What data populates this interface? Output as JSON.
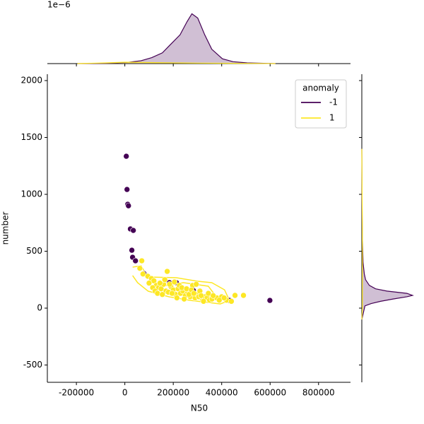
{
  "chart_data": {
    "type": "scatter",
    "x_label": "N50",
    "y_label": "number",
    "xlim": [
      -320000,
      932000
    ],
    "xticks": [
      -200000,
      0,
      200000,
      400000,
      600000,
      800000
    ],
    "ylim": [
      -652,
      2056
    ],
    "yticks": [
      -500,
      0,
      500,
      1000,
      1500,
      2000
    ],
    "legend": {
      "title": "anomaly",
      "position": "upper right"
    },
    "series": [
      {
        "name": "-1",
        "color": "#440154",
        "x": [
          6000,
          9000,
          12000,
          15000,
          23000,
          35000,
          29000,
          32000,
          44000,
          79000,
          184000,
          213000,
          283000,
          432000,
          599000
        ],
        "y": [
          1335,
          1043,
          913,
          900,
          696,
          683,
          509,
          447,
          416,
          304,
          224,
          224,
          155,
          68,
          68
        ]
      },
      {
        "name": "1",
        "color": "#fde725",
        "x": [
          70000,
          175000,
          455000,
          490000,
          62000,
          75000,
          95000,
          110000,
          120000,
          130000,
          140000,
          150000,
          160000,
          170000,
          180000,
          190000,
          200000,
          210000,
          220000,
          230000,
          240000,
          250000,
          260000,
          270000,
          280000,
          290000,
          300000,
          310000,
          320000,
          330000,
          340000,
          350000,
          360000,
          380000,
          400000,
          420000,
          440000,
          100000,
          115000,
          125000,
          135000,
          145000,
          155000,
          165000,
          185000,
          195000,
          205000,
          215000,
          225000,
          235000,
          245000,
          255000,
          265000,
          275000,
          285000,
          295000,
          305000,
          315000,
          325000,
          345000,
          365000,
          390000,
          410000
        ],
        "y": [
          416,
          323,
          112,
          112,
          350,
          300,
          280,
          260,
          240,
          200,
          180,
          170,
          210,
          150,
          140,
          190,
          160,
          120,
          170,
          130,
          150,
          110,
          140,
          100,
          200,
          90,
          120,
          150,
          80,
          100,
          90,
          70,
          80,
          90,
          100,
          70,
          60,
          220,
          180,
          150,
          130,
          220,
          120,
          250,
          210,
          130,
          230,
          90,
          200,
          180,
          80,
          170,
          120,
          160,
          130,
          210,
          100,
          110,
          60,
          130,
          110,
          70,
          90
        ]
      }
    ],
    "contours": [
      {
        "x": [
          32100,
          67200,
          81800,
          110900,
          213100,
          300700,
          359100,
          411700,
          432100,
          394200,
          344500,
          271500,
          183900,
          96400,
          52600,
          32100
        ],
        "y": [
          360,
          373,
          317,
          273,
          267,
          236,
          224,
          161,
          68,
          37,
          50,
          68,
          99,
          149,
          224,
          286
        ]
      },
      {
        "x": [
          154700,
          242300,
          344500,
          373700,
          300700,
          183900
        ],
        "y": [
          193,
          224,
          193,
          112,
          99,
          130
        ]
      }
    ],
    "x_marginal": {
      "offset_label": "1e−6",
      "ylim": [
        0,
        2.3
      ],
      "series": [
        {
          "x": [
            -196000,
            -79000,
            9000,
            67000,
            111000,
            155000,
            184000,
            228000,
            257000,
            277000,
            301000,
            330000,
            359000,
            403000,
            447000,
            505000,
            622000
          ],
          "density": [
            0,
            0.01,
            0.05,
            0.12,
            0.25,
            0.45,
            0.75,
            1.2,
            1.75,
            2.08,
            1.9,
            1.2,
            0.6,
            0.2,
            0.08,
            0.03,
            0
          ]
        },
        {
          "x": [
            -196000,
            -79000,
            0,
            126000,
            301000,
            447000,
            622000
          ],
          "density": [
            0,
            0.03,
            0.06,
            0.04,
            0.02,
            0.01,
            0
          ]
        }
      ]
    },
    "y_marginal": {
      "xlim": [
        0,
        0.0088
      ],
      "series": [
        {
          "y": [
            -100,
            20,
            40,
            60,
            80,
            100,
            112,
            130,
            150,
            170,
            200,
            250,
            300,
            400,
            600,
            800,
            1400
          ],
          "density": [
            0,
            0.0005,
            0.0015,
            0.003,
            0.005,
            0.0072,
            0.0081,
            0.0072,
            0.004,
            0.0022,
            0.0012,
            0.0006,
            0.0004,
            0.0002,
            0.0001,
            5e-05,
            0
          ]
        },
        {
          "y": [
            -100,
            0,
            300,
            700,
            1000,
            1400
          ],
          "density": [
            0,
            0.0001,
            0.0001,
            0.0001,
            5e-05,
            0
          ]
        }
      ]
    }
  }
}
